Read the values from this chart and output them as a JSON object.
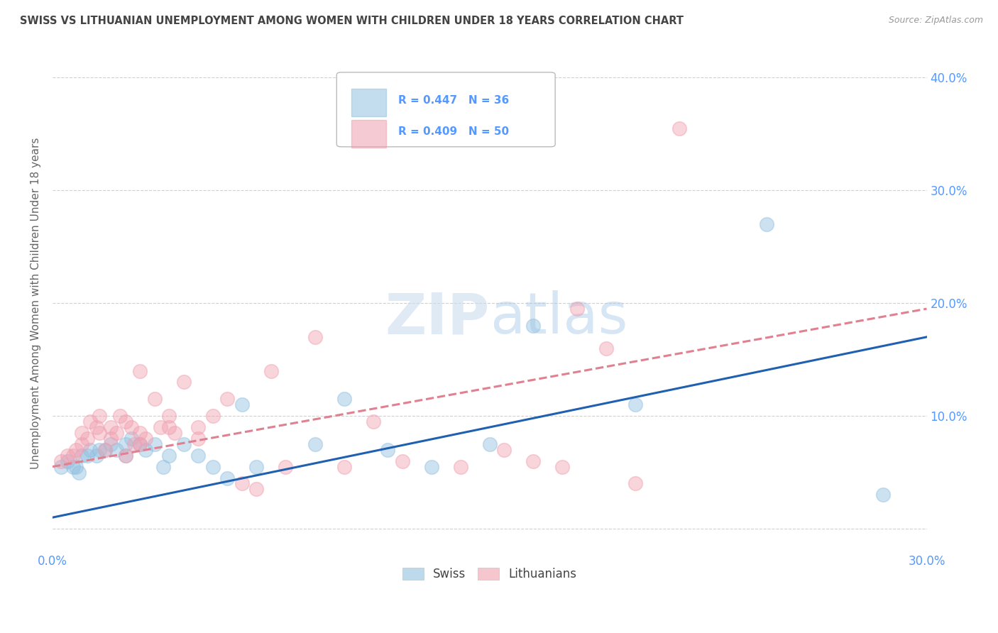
{
  "title": "SWISS VS LITHUANIAN UNEMPLOYMENT AMONG WOMEN WITH CHILDREN UNDER 18 YEARS CORRELATION CHART",
  "source": "Source: ZipAtlas.com",
  "ylabel": "Unemployment Among Women with Children Under 18 years",
  "xlim": [
    0.0,
    0.3
  ],
  "ylim": [
    -0.02,
    0.42
  ],
  "yticks": [
    0.0,
    0.1,
    0.2,
    0.3,
    0.4
  ],
  "xticks": [
    0.0,
    0.05,
    0.1,
    0.15,
    0.2,
    0.25,
    0.3
  ],
  "background_color": "#ffffff",
  "grid_color": "#d0d0d0",
  "axis_color": "#5599ff",
  "swiss_color": "#92c0e0",
  "lithuanian_color": "#f0a0b0",
  "swiss_R": 0.447,
  "swiss_N": 36,
  "lithuanian_R": 0.409,
  "lithuanian_N": 50,
  "swiss_line_color": "#2060b0",
  "lithuanian_line_color": "#e08090",
  "swiss_line_start_y": 0.01,
  "swiss_line_end_y": 0.17,
  "lit_line_start_y": 0.055,
  "lit_line_end_y": 0.195,
  "swiss_x": [
    0.003,
    0.005,
    0.007,
    0.008,
    0.009,
    0.01,
    0.012,
    0.013,
    0.015,
    0.016,
    0.018,
    0.02,
    0.022,
    0.025,
    0.025,
    0.027,
    0.03,
    0.032,
    0.035,
    0.038,
    0.04,
    0.045,
    0.05,
    0.055,
    0.06,
    0.065,
    0.07,
    0.09,
    0.1,
    0.115,
    0.13,
    0.15,
    0.165,
    0.2,
    0.245,
    0.285
  ],
  "swiss_y": [
    0.055,
    0.06,
    0.055,
    0.055,
    0.05,
    0.065,
    0.065,
    0.07,
    0.065,
    0.07,
    0.07,
    0.075,
    0.07,
    0.065,
    0.075,
    0.08,
    0.075,
    0.07,
    0.075,
    0.055,
    0.065,
    0.075,
    0.065,
    0.055,
    0.045,
    0.11,
    0.055,
    0.075,
    0.115,
    0.07,
    0.055,
    0.075,
    0.18,
    0.11,
    0.27,
    0.03
  ],
  "lithuanian_x": [
    0.003,
    0.005,
    0.007,
    0.008,
    0.01,
    0.01,
    0.012,
    0.013,
    0.015,
    0.016,
    0.016,
    0.018,
    0.02,
    0.02,
    0.022,
    0.023,
    0.025,
    0.025,
    0.027,
    0.028,
    0.03,
    0.03,
    0.03,
    0.032,
    0.035,
    0.037,
    0.04,
    0.04,
    0.042,
    0.045,
    0.05,
    0.05,
    0.055,
    0.06,
    0.065,
    0.07,
    0.075,
    0.08,
    0.09,
    0.1,
    0.11,
    0.12,
    0.14,
    0.155,
    0.165,
    0.175,
    0.18,
    0.19,
    0.2,
    0.215
  ],
  "lithuanian_y": [
    0.06,
    0.065,
    0.065,
    0.07,
    0.075,
    0.085,
    0.08,
    0.095,
    0.09,
    0.085,
    0.1,
    0.07,
    0.08,
    0.09,
    0.085,
    0.1,
    0.065,
    0.095,
    0.09,
    0.075,
    0.075,
    0.085,
    0.14,
    0.08,
    0.115,
    0.09,
    0.09,
    0.1,
    0.085,
    0.13,
    0.08,
    0.09,
    0.1,
    0.115,
    0.04,
    0.035,
    0.14,
    0.055,
    0.17,
    0.055,
    0.095,
    0.06,
    0.055,
    0.07,
    0.06,
    0.055,
    0.195,
    0.16,
    0.04,
    0.355
  ],
  "swiss_marker_size": 200,
  "lithuanian_marker_size": 200
}
